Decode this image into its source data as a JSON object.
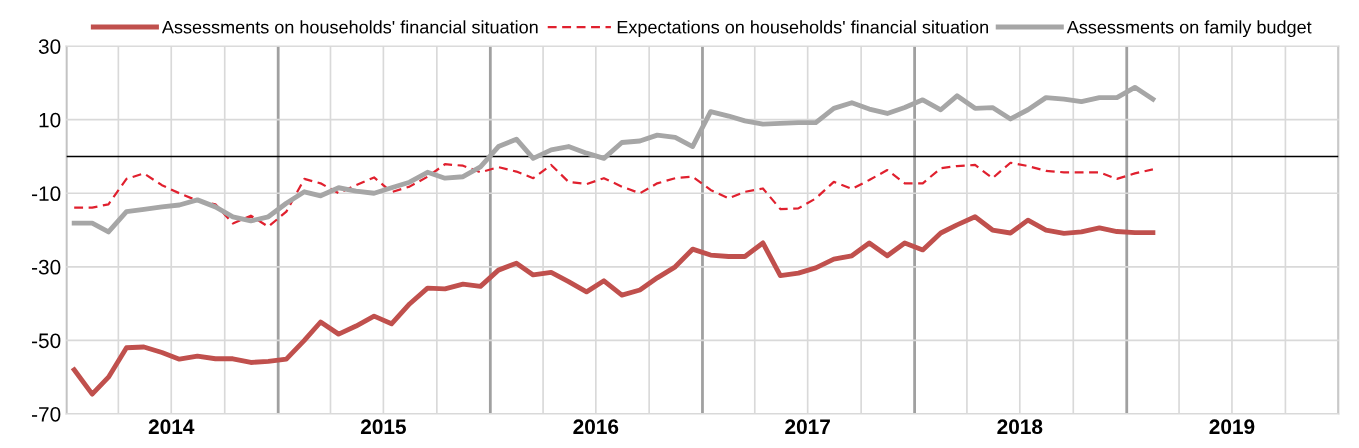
{
  "chart_data": {
    "type": "line",
    "x": [
      "2014-01-15",
      "2014-02-15",
      "2014-03-15",
      "2014-04-15",
      "2014-05-15",
      "2014-06-15",
      "2014-07-15",
      "2014-08-15",
      "2014-09-15",
      "2014-10-15",
      "2014-11-15",
      "2014-12-15",
      "2015-01-15",
      "2015-02-15",
      "2015-03-15",
      "2015-04-15",
      "2015-05-15",
      "2015-06-15",
      "2015-07-15",
      "2015-08-15",
      "2015-09-15",
      "2015-10-15",
      "2015-11-15",
      "2015-12-15",
      "2016-01-15",
      "2016-02-15",
      "2016-03-15",
      "2016-04-15",
      "2016-05-15",
      "2016-06-15",
      "2016-07-15",
      "2016-08-15",
      "2016-09-15",
      "2016-10-15",
      "2016-11-15",
      "2016-12-15",
      "2017-01-15",
      "2017-02-15",
      "2017-03-15",
      "2017-04-15",
      "2017-05-15",
      "2017-06-15",
      "2017-07-15",
      "2017-08-15",
      "2017-09-15",
      "2017-10-15",
      "2017-11-15",
      "2017-12-15",
      "2018-01-15",
      "2018-02-15",
      "2018-03-15",
      "2018-04-15",
      "2018-05-15",
      "2018-06-15",
      "2018-07-15",
      "2018-08-15",
      "2018-09-15",
      "2018-10-15",
      "2018-11-15",
      "2018-12-15",
      "2019-01-15",
      "2019-02-15"
    ],
    "series": [
      {
        "name": "Assessments on households' financial situation",
        "color": "#c0504d",
        "line_style": "solid",
        "values": [
          -58,
          -64.6,
          -60,
          -52,
          -51.8,
          -53.3,
          -55.1,
          -54.3,
          -55,
          -55,
          -56,
          -55.7,
          -55.1,
          -50,
          -45,
          -48.3,
          -46.1,
          -43.4,
          -45.5,
          -40.1,
          -35.8,
          -36,
          -34.7,
          -35.3,
          -30.9,
          -29,
          -32.2,
          -31.5,
          -34,
          -36.8,
          -33.8,
          -37.7,
          -36.3,
          -33,
          -30,
          -25.2,
          -26.8,
          -27.2,
          -27.2,
          -23.5,
          -32.4,
          -31.7,
          -30.3,
          -27.9,
          -27,
          -23.5,
          -27,
          -23.5,
          -25.4,
          -20.8,
          -18.6,
          -16.4,
          -20,
          -20.8,
          -17.3,
          -20,
          -20.9,
          -20.5,
          -19.4,
          -20.4,
          -20.7,
          -20.7
        ]
      },
      {
        "name": "Expectations on households' financial situation",
        "color": "#e0202e",
        "line_style": "dashed",
        "values": [
          -13.9,
          -13.9,
          -13,
          -6.1,
          -4.6,
          -7.8,
          -10,
          -12,
          -13,
          -18.2,
          -16.1,
          -19.1,
          -15,
          -6.1,
          -7.3,
          -10,
          -7.8,
          -5.7,
          -9.7,
          -8.2,
          -5.5,
          -2.1,
          -2.5,
          -4.3,
          -2.9,
          -4.1,
          -5.9,
          -2.3,
          -6.9,
          -7.5,
          -5.9,
          -8.2,
          -10,
          -7.3,
          -5.9,
          -5.5,
          -9.1,
          -11.4,
          -9.6,
          -8.7,
          -14.3,
          -14.1,
          -11.4,
          -6.9,
          -8.8,
          -6.4,
          -3.7,
          -7.3,
          -7.3,
          -3.2,
          -2.6,
          -2.3,
          -5.9,
          -1.7,
          -2.6,
          -3.9,
          -4.3,
          -4.3,
          -4.3,
          -6.1,
          -4.6,
          -3.5
        ]
      },
      {
        "name": "Assessments on family budget",
        "color": "#a6a6a6",
        "line_style": "solid",
        "values": [
          -18.1,
          -18.1,
          -20.5,
          -15,
          -14.4,
          -13.7,
          -13.2,
          -11.8,
          -13.7,
          -16.4,
          -17.5,
          -16.4,
          -12.7,
          -9.6,
          -10.7,
          -8.5,
          -9.4,
          -10,
          -8.5,
          -7,
          -4.3,
          -5.9,
          -5.5,
          -2.8,
          2.7,
          4.7,
          -0.5,
          1.8,
          2.7,
          0.9,
          -0.5,
          3.8,
          4.2,
          5.8,
          5.2,
          2.7,
          12.2,
          11,
          9.7,
          8.8,
          9,
          9.2,
          9.2,
          13.1,
          14.6,
          12.9,
          11.7,
          13.3,
          15.4,
          12.7,
          16.5,
          13.1,
          13.3,
          10.2,
          12.7,
          16,
          15.6,
          14.9,
          16,
          16,
          18.8,
          15.6
        ]
      }
    ],
    "xlim": [
      "2014-01-01",
      "2020-01-01"
    ],
    "xticks": [
      {
        "value": "2014-01-01",
        "label": null
      },
      {
        "value": "2014-04-01",
        "label": null
      },
      {
        "value": "2014-07-01",
        "label": "2014"
      },
      {
        "value": "2014-10-01",
        "label": null
      },
      {
        "value": "2015-01-01",
        "label": null
      },
      {
        "value": "2015-04-01",
        "label": null
      },
      {
        "value": "2015-07-01",
        "label": "2015"
      },
      {
        "value": "2015-10-01",
        "label": null
      },
      {
        "value": "2016-01-01",
        "label": null
      },
      {
        "value": "2016-04-01",
        "label": null
      },
      {
        "value": "2016-07-01",
        "label": "2016"
      },
      {
        "value": "2016-10-01",
        "label": null
      },
      {
        "value": "2017-01-01",
        "label": null
      },
      {
        "value": "2017-04-01",
        "label": null
      },
      {
        "value": "2017-07-01",
        "label": "2017"
      },
      {
        "value": "2017-10-01",
        "label": null
      },
      {
        "value": "2018-01-01",
        "label": null
      },
      {
        "value": "2018-04-01",
        "label": null
      },
      {
        "value": "2018-07-01",
        "label": "2018"
      },
      {
        "value": "2018-10-01",
        "label": null
      },
      {
        "value": "2019-01-01",
        "label": null
      },
      {
        "value": "2019-04-01",
        "label": null
      },
      {
        "value": "2019-07-01",
        "label": "2019"
      },
      {
        "value": "2019-10-01",
        "label": null
      },
      {
        "value": "2020-01-01",
        "label": null
      }
    ],
    "ylim": [
      -70,
      30
    ],
    "yticks": [
      -70,
      -50,
      -30,
      -10,
      10,
      30
    ],
    "ref_lines": [
      {
        "axis": "y",
        "value": 0,
        "color": "#000000"
      }
    ],
    "grid": true,
    "legend": "top",
    "marker": "none"
  }
}
